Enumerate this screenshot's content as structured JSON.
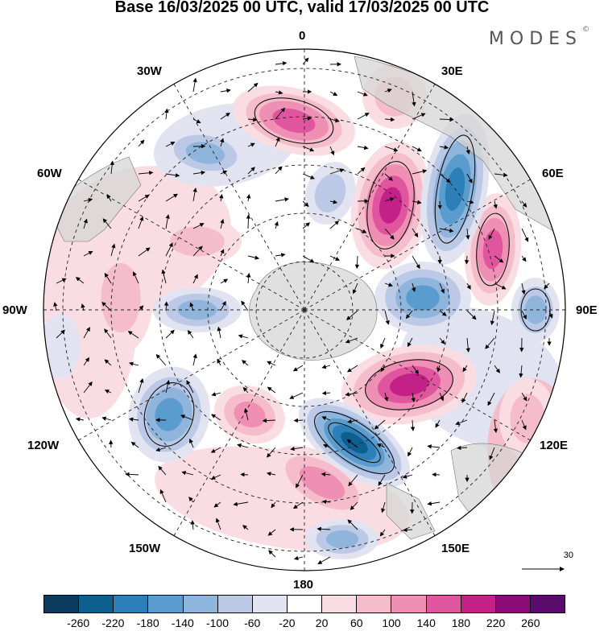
{
  "title": "Base 16/03/2025 00 UTC, valid 17/03/2025 00 UTC",
  "brand": "MODES",
  "brand_mark": "©",
  "longitude_labels": {
    "l0": "0",
    "l30e": "30E",
    "l60e": "60E",
    "l90e": "90E",
    "l120e": "120E",
    "l150e": "150E",
    "l180": "180",
    "l150w": "150W",
    "l120w": "120W",
    "l90w": "90W",
    "l60w": "60W",
    "l30w": "30W"
  },
  "reference_vector_label": "30",
  "colorbar": {
    "colors": [
      "#0d3b5e",
      "#0d5f8e",
      "#2d7fba",
      "#5a9ccd",
      "#8fb5dc",
      "#bcc9e6",
      "#e1e3f1",
      "#ffffff",
      "#fadde2",
      "#f5bccb",
      "#ef8fb3",
      "#e0569e",
      "#c42188",
      "#8c0a78",
      "#5a0c6d"
    ],
    "ticks": [
      "-260",
      "-220",
      "-180",
      "-140",
      "-100",
      "-60",
      "-20",
      "20",
      "60",
      "100",
      "140",
      "180",
      "220",
      "260"
    ]
  }
}
